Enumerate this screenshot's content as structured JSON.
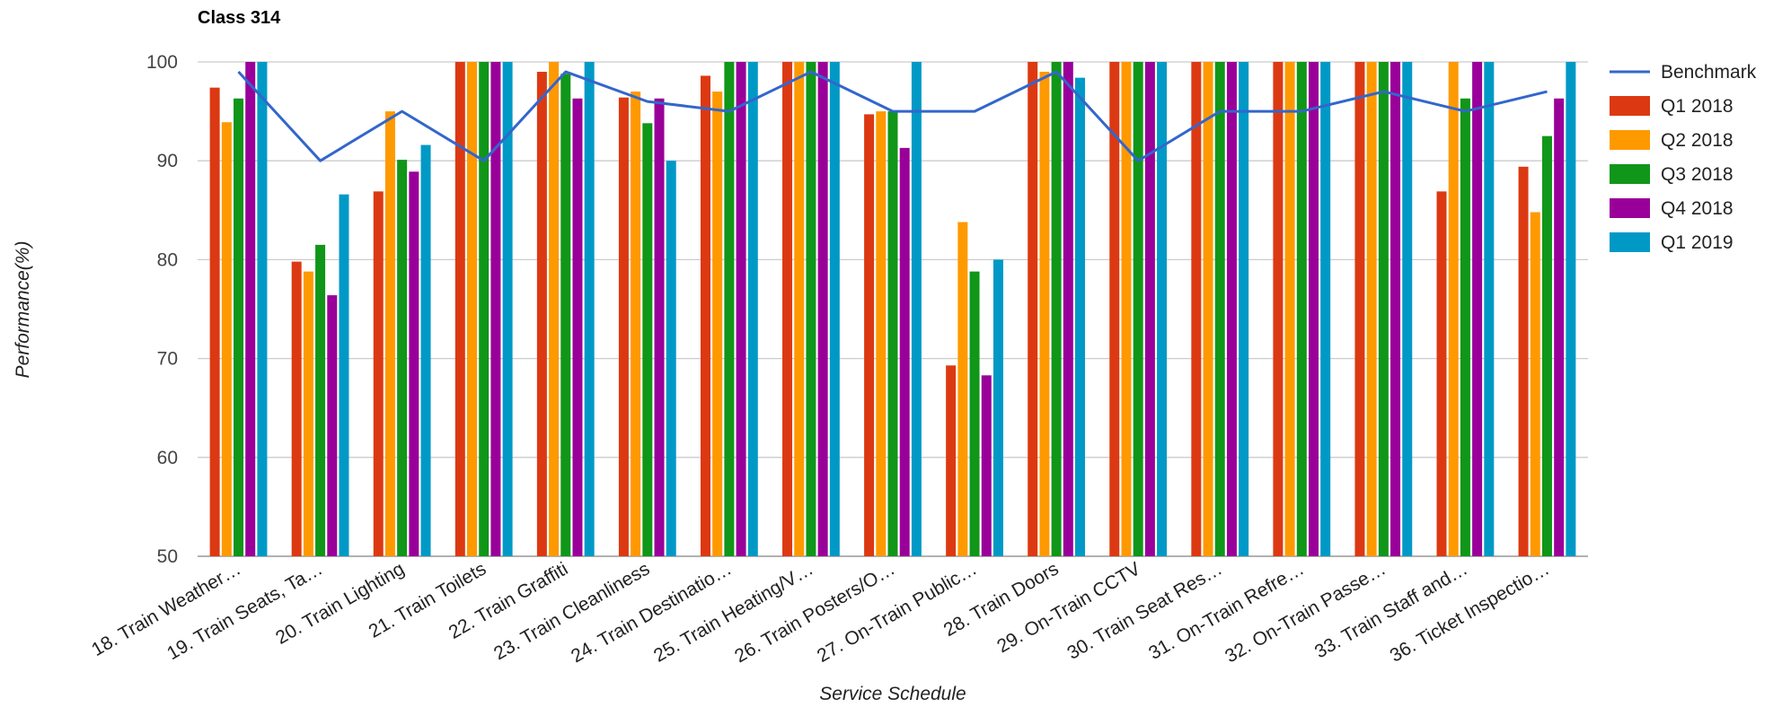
{
  "chart_data": {
    "type": "bar",
    "title": "Class 314",
    "xlabel": "Service Schedule",
    "ylabel": "Performance(%)",
    "ylim": [
      50,
      100
    ],
    "yticks": [
      50,
      60,
      70,
      80,
      90,
      100
    ],
    "grid": true,
    "legend_position": "right",
    "categories": [
      "18. Train Weather…",
      "19. Train Seats, Ta…",
      "20. Train Lighting",
      "21. Train Toilets",
      "22. Train Graffiti",
      "23. Train Cleanliness",
      "24. Train Destinatio…",
      "25. Train Heating/V…",
      "26. Train Posters/O…",
      "27. On-Train Public…",
      "28. Train Doors",
      "29. On-Train CCTV",
      "30. Train Seat Res…",
      "31. On-Train Refre…",
      "32. On-Train Passe…",
      "33. Train Staff and…",
      "36. Ticket Inspectio…"
    ],
    "series": [
      {
        "name": "Q1 2018",
        "type": "bar",
        "color": "#dc3912",
        "values": [
          97.4,
          79.8,
          86.9,
          100,
          99,
          96.4,
          98.6,
          100,
          94.7,
          69.3,
          100,
          100,
          100,
          100,
          100,
          86.9,
          89.4
        ]
      },
      {
        "name": "Q2 2018",
        "type": "bar",
        "color": "#ff9900",
        "values": [
          93.9,
          78.8,
          95,
          100,
          100,
          97,
          97,
          100,
          95,
          83.8,
          99,
          100,
          100,
          100,
          100,
          100,
          84.8
        ]
      },
      {
        "name": "Q3 2018",
        "type": "bar",
        "color": "#109618",
        "values": [
          96.3,
          81.5,
          90.1,
          100,
          98.8,
          93.8,
          100,
          100,
          95,
          78.8,
          100,
          100,
          100,
          100,
          100,
          96.3,
          92.5
        ]
      },
      {
        "name": "Q4 2018",
        "type": "bar",
        "color": "#990099",
        "values": [
          100,
          76.4,
          88.9,
          100,
          96.3,
          96.3,
          100,
          100,
          91.3,
          68.3,
          100,
          100,
          100,
          100,
          100,
          100,
          96.3
        ]
      },
      {
        "name": "Q1 2019",
        "type": "bar",
        "color": "#0099c6",
        "values": [
          100,
          86.6,
          91.6,
          100,
          100,
          90,
          100,
          100,
          100,
          80,
          98.4,
          100,
          100,
          100,
          100,
          100,
          100
        ]
      },
      {
        "name": "Benchmark",
        "type": "line",
        "color": "#3366cc",
        "values": [
          99,
          90,
          95,
          90,
          99,
          96,
          95,
          99,
          95,
          95,
          99,
          90,
          95,
          95,
          97,
          95,
          97
        ]
      }
    ]
  }
}
